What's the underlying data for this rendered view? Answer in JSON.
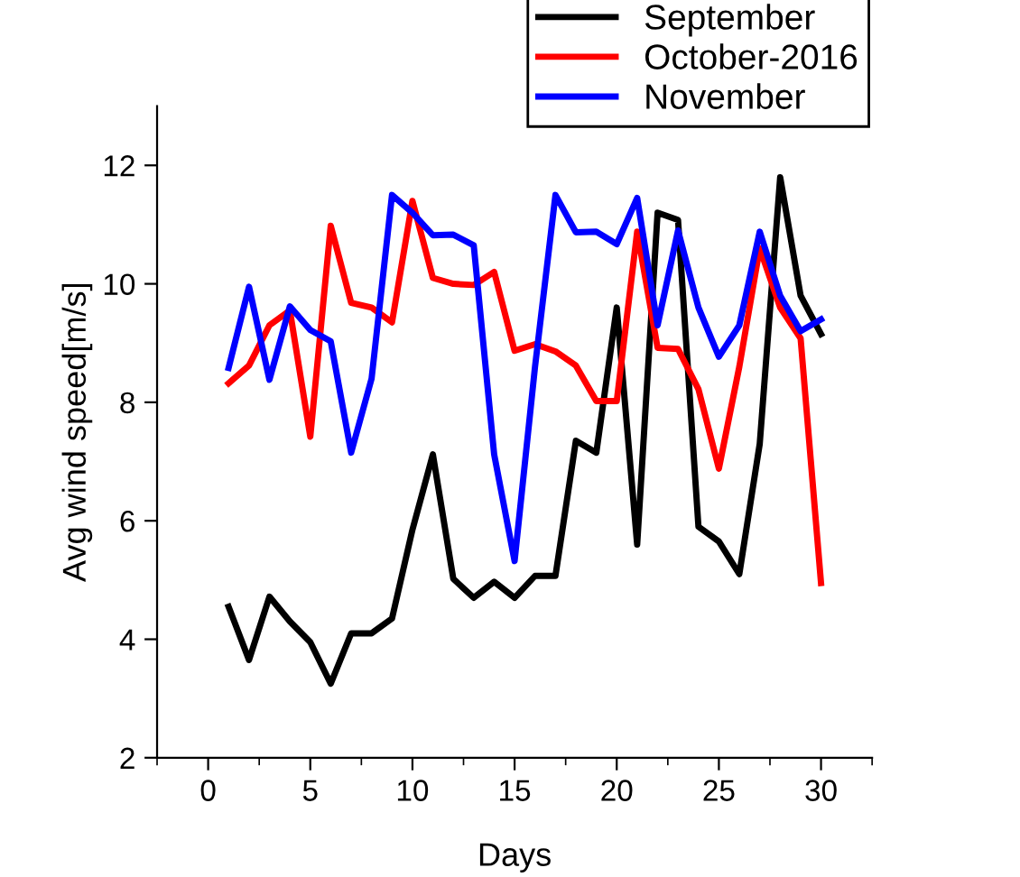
{
  "chart_data": {
    "type": "line",
    "xlabel": "Days",
    "ylabel": "Avg wind speed[m/s]",
    "x": [
      1,
      2,
      3,
      4,
      5,
      6,
      7,
      8,
      9,
      10,
      11,
      12,
      13,
      14,
      15,
      16,
      17,
      18,
      19,
      20,
      21,
      22,
      23,
      24,
      25,
      26,
      27,
      28,
      29,
      30
    ],
    "series": [
      {
        "name": "September",
        "color": "#000000",
        "values": [
          4.55,
          3.65,
          4.72,
          4.3,
          3.95,
          3.25,
          4.1,
          4.1,
          4.35,
          5.85,
          7.12,
          5.02,
          4.7,
          4.97,
          4.7,
          5.07,
          5.07,
          7.35,
          7.15,
          9.6,
          5.6,
          11.2,
          11.08,
          5.9,
          5.65,
          5.1,
          7.3,
          11.8,
          9.8,
          9.15
        ]
      },
      {
        "name": "October-2016",
        "color": "#ff0000",
        "values": [
          8.32,
          8.62,
          9.3,
          9.55,
          7.42,
          10.98,
          9.68,
          9.6,
          9.35,
          11.4,
          10.1,
          10.0,
          9.98,
          10.2,
          8.87,
          8.98,
          8.86,
          8.62,
          8.02,
          8.02,
          10.88,
          8.92,
          8.9,
          8.22,
          6.88,
          8.6,
          10.6,
          9.6,
          9.08,
          4.95
        ]
      },
      {
        "name": "November",
        "color": "#0000ff",
        "values": [
          8.58,
          9.95,
          8.38,
          9.62,
          9.22,
          9.03,
          7.15,
          8.4,
          11.5,
          11.2,
          10.82,
          10.83,
          10.65,
          7.12,
          5.32,
          8.6,
          11.5,
          10.87,
          10.88,
          10.67,
          11.45,
          9.3,
          10.9,
          9.6,
          8.77,
          9.3,
          10.88,
          9.8,
          9.2,
          9.4
        ]
      }
    ],
    "xlim": [
      -2.5,
      32.5
    ],
    "xticks": [
      0,
      5,
      10,
      15,
      20,
      25,
      30
    ],
    "ylim": [
      2,
      13
    ],
    "yticks": [
      2,
      4,
      6,
      8,
      10,
      12
    ],
    "grid": false,
    "legend": "top right",
    "marker": "none",
    "line_style": "solid"
  }
}
